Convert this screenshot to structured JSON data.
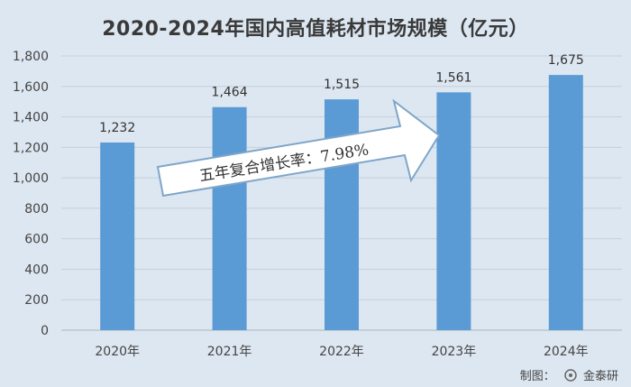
{
  "chart_data": {
    "type": "bar",
    "title": "2020-2024年国内高值耗材市场规模（亿元）",
    "categories": [
      "2020年",
      "2021年",
      "2022年",
      "2023年",
      "2024年"
    ],
    "values": [
      1232,
      1464,
      1515,
      1561,
      1675
    ],
    "value_labels": [
      "1,232",
      "1,464",
      "1,515",
      "1,561",
      "1,675"
    ],
    "yticks": [
      "0",
      "200",
      "400",
      "600",
      "800",
      "1,000",
      "1,200",
      "1,400",
      "1,600",
      "1,800"
    ],
    "ylim": [
      0,
      1800
    ],
    "grid": true,
    "annotation": "五年复合增长率：7.98%",
    "bar_color": "#5b9bd5",
    "arrow_fill": "#ffffff",
    "arrow_stroke": "#7fa6c8"
  },
  "credit": {
    "label": "制图：",
    "brand": "金泰研"
  }
}
